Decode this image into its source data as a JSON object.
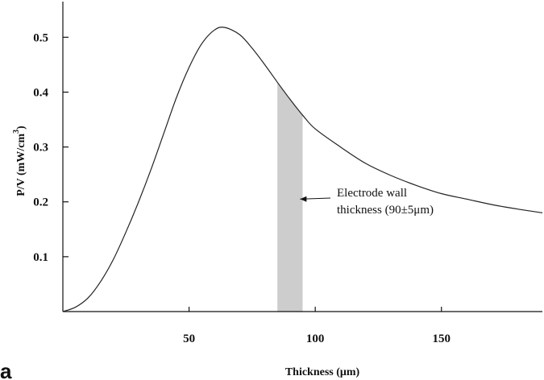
{
  "chart_data": {
    "type": "line",
    "title": "",
    "xlabel": "Thickness (μm)",
    "ylabel": "P/V (mW/cm",
    "ylabel_sup": "3",
    "ylabel_close": ")",
    "xlim": [
      0,
      190
    ],
    "ylim": [
      0,
      0.565
    ],
    "xticks": [
      50,
      100,
      150
    ],
    "yticks": [
      0.1,
      0.2,
      0.3,
      0.4,
      0.5
    ],
    "xtick_labels": [
      "50",
      "100",
      "150"
    ],
    "ytick_labels": [
      "0.1",
      "0.2",
      "0.3",
      "0.4",
      "0.5"
    ],
    "grid": false,
    "series": [
      {
        "x": [
          0,
          5,
          10,
          15,
          20,
          25,
          30,
          35,
          40,
          45,
          50,
          55,
          60,
          64,
          70,
          75,
          80,
          85,
          90,
          95,
          100,
          110,
          120,
          130,
          140,
          150,
          160,
          170,
          180,
          190
        ],
        "y": [
          0,
          0.008,
          0.025,
          0.055,
          0.095,
          0.145,
          0.2,
          0.26,
          0.325,
          0.39,
          0.445,
          0.488,
          0.513,
          0.518,
          0.505,
          0.48,
          0.45,
          0.418,
          0.387,
          0.358,
          0.333,
          0.3,
          0.27,
          0.248,
          0.23,
          0.215,
          0.205,
          0.195,
          0.187,
          0.18
        ]
      }
    ],
    "shaded_band": {
      "x0": 85,
      "x1": 95,
      "color": "#c8c8c8"
    },
    "annotation": {
      "lines": [
        "Electrode wall",
        "thickness (90±5μm)"
      ],
      "arrow_target": [
        94,
        0.205
      ]
    },
    "panel_label": "a"
  }
}
